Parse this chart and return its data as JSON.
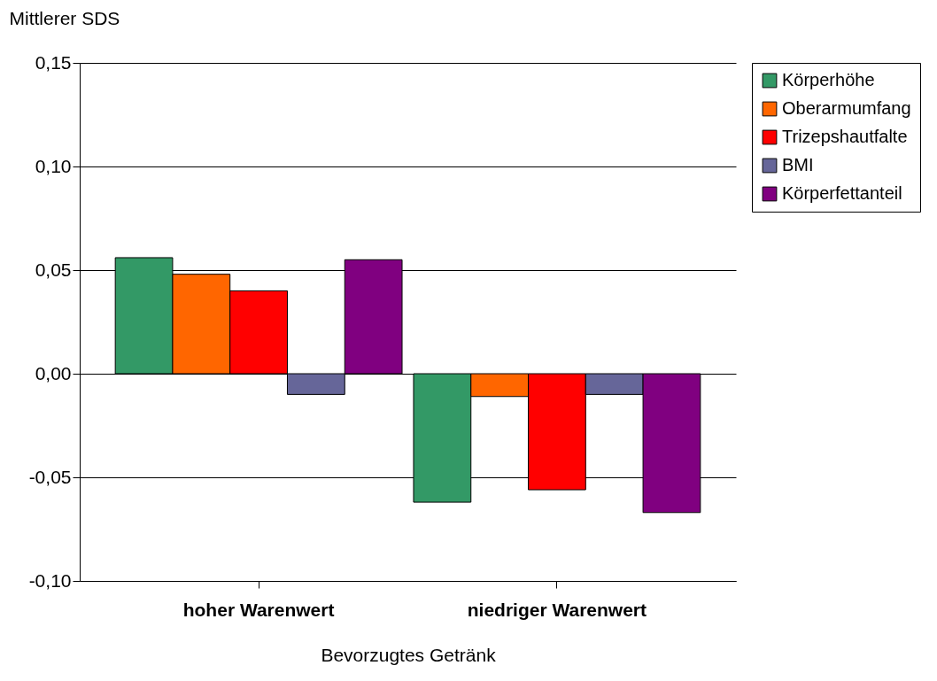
{
  "chart_data": {
    "type": "bar",
    "xlabel": "Bevorzugtes Getränk",
    "ylabel": "Mittlerer SDS",
    "categories": [
      "hoher Warenwert",
      "niedriger Warenwert"
    ],
    "series": [
      {
        "name": "Körperhöhe",
        "color": "#339966",
        "values": [
          0.056,
          -0.062
        ]
      },
      {
        "name": "Oberarmumfang",
        "color": "#ff6600",
        "values": [
          0.048,
          -0.011
        ]
      },
      {
        "name": "Trizepshautfalte",
        "color": "#ff0000",
        "values": [
          0.04,
          -0.056
        ]
      },
      {
        "name": "BMI",
        "color": "#666699",
        "values": [
          -0.01,
          -0.01
        ]
      },
      {
        "name": "Körperfettanteil",
        "color": "#800080",
        "values": [
          0.055,
          -0.067
        ]
      }
    ],
    "ylim": [
      -0.1,
      0.15
    ],
    "yticks": [
      {
        "value": -0.1,
        "label": "-0,10"
      },
      {
        "value": -0.05,
        "label": "-0,05"
      },
      {
        "value": 0,
        "label": "0,00"
      },
      {
        "value": 0.05,
        "label": "0,05"
      },
      {
        "value": 0.1,
        "label": "0,10"
      },
      {
        "value": 0.15,
        "label": "0,15"
      }
    ],
    "grid": "y",
    "legend": "right"
  }
}
